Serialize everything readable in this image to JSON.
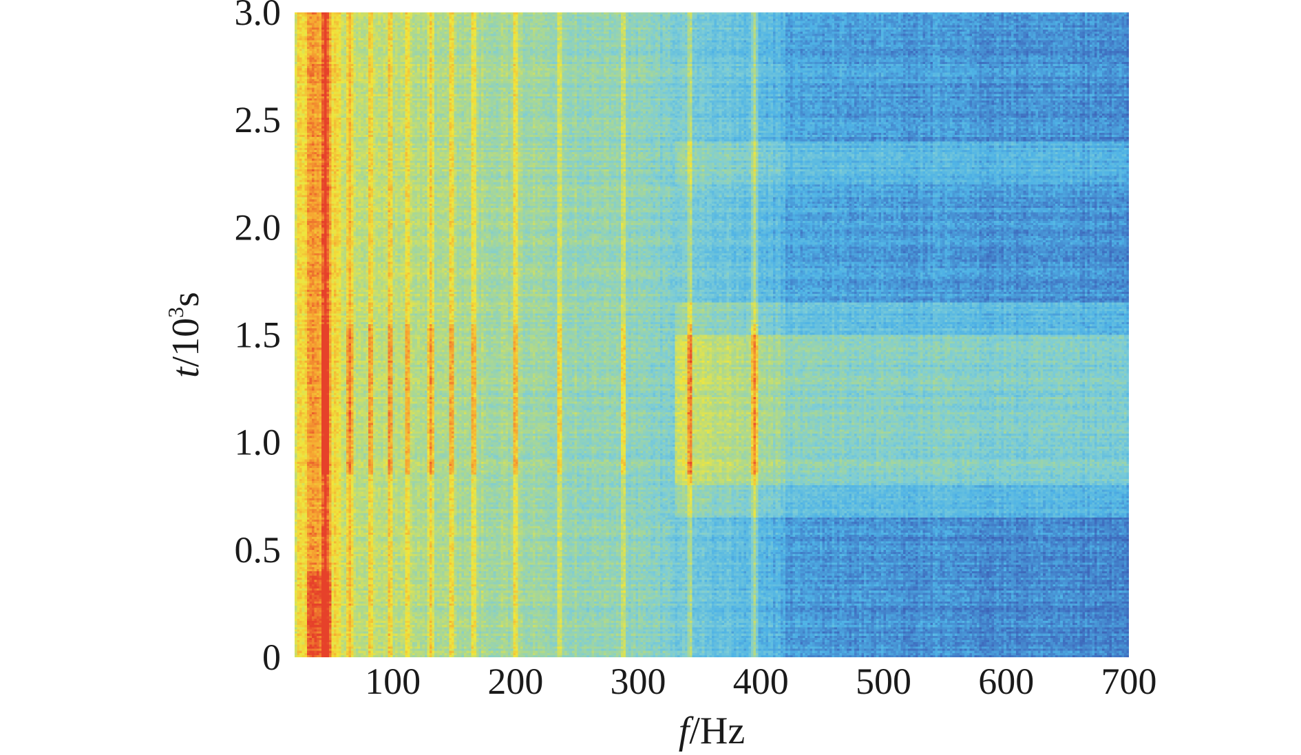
{
  "chart_data": {
    "type": "heatmap",
    "title": "",
    "xlabel": {
      "symbol": "f",
      "unit": "/Hz"
    },
    "ylabel": {
      "symbol": "t",
      "unit_prefix": "/10",
      "unit_exponent": "3",
      "unit_suffix": "s"
    },
    "xlim": [
      20,
      700
    ],
    "ylim": [
      0,
      3.0
    ],
    "x_ticks": [
      100,
      200,
      300,
      400,
      500,
      600,
      700
    ],
    "x_tick_labels": [
      "100",
      "200",
      "300",
      "400",
      "500",
      "600",
      "700"
    ],
    "y_ticks": [
      0,
      0.5,
      1.0,
      1.5,
      2.0,
      2.5,
      3.0
    ],
    "y_tick_labels": [
      "0",
      "0.5",
      "1.0",
      "1.5",
      "2.0",
      "2.5",
      "3.0"
    ],
    "grid": false,
    "legend": "none",
    "colormap": [
      "#3a4a9e",
      "#3f6fc0",
      "#4fb3e6",
      "#7ecdd6",
      "#b0d98a",
      "#f0e63c",
      "#f6a431",
      "#e6402a"
    ],
    "harmonic_lines_hz": [
      45,
      65,
      82,
      98,
      112,
      131,
      148,
      166,
      200,
      236,
      288,
      342,
      395
    ],
    "strong_band_hz": [
      30,
      50
    ],
    "active_time_band": [
      0.8,
      1.5
    ]
  }
}
